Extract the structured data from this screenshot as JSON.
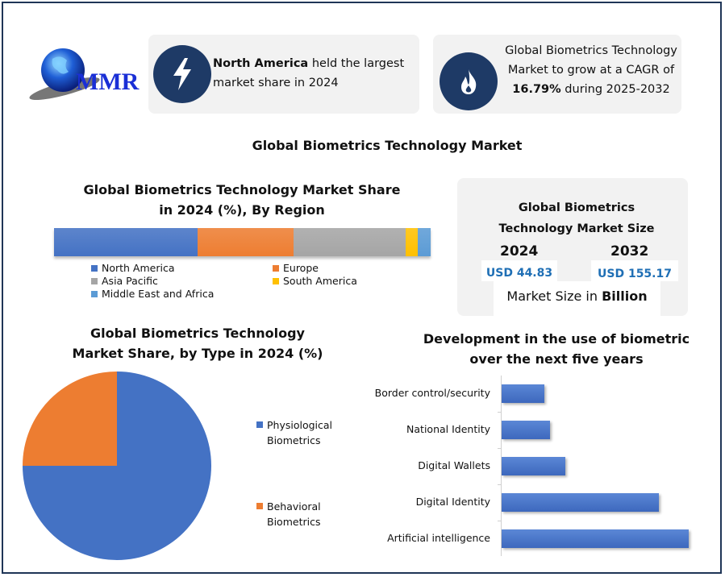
{
  "logo": {
    "text": "MMR"
  },
  "highlight1": {
    "bold": "North America",
    "text": " held the largest market share in 2024",
    "icon": "lightning-icon"
  },
  "highlight2": {
    "line1": "Global Biometrics Technology Market to grow at a CAGR of ",
    "bold": "16.79%",
    "line2": " during 2025-2032",
    "icon": "flame-icon"
  },
  "main_title": "Global Biometrics Technology Market",
  "market_size": {
    "title": "Global Biometrics Technology Market Size",
    "year1": "2024",
    "value1": "USD 44.83",
    "year2": "2032",
    "value2": "USD 155.17",
    "unit_prefix": "Market Size in ",
    "unit_bold": "Billion"
  },
  "colors": {
    "blue": "#4472c4",
    "orange": "#ed7d31",
    "gray": "#a5a5a5",
    "yellow": "#ffc000",
    "lightblue": "#5b9bd5",
    "navy": "#1e3a66"
  },
  "chart_data": [
    {
      "type": "bar",
      "stacked": true,
      "title": "Global Biometrics Technology Market Share in 2024 (%), By Region",
      "categories": [
        "North America",
        "Europe",
        "Asia Pacific",
        "South America",
        "Middle East and Africa"
      ],
      "values": [
        38.1,
        25.5,
        29.8,
        3.2,
        3.4
      ],
      "colors": [
        "#4472c4",
        "#ed7d31",
        "#a5a5a5",
        "#ffc000",
        "#5b9bd5"
      ],
      "legend": "bottom"
    },
    {
      "type": "pie",
      "title": "Global Biometrics Technology Market Share, by Type in 2024 (%)",
      "categories": [
        "Physiological Biometrics",
        "Behavioral Biometrics"
      ],
      "values": [
        75,
        25
      ],
      "colors": [
        "#4472c4",
        "#ed7d31"
      ],
      "legend": "right"
    },
    {
      "type": "bar",
      "orientation": "horizontal",
      "title": "Development in the use of biometric over the next five years",
      "categories": [
        "Border control/security",
        "National Identity",
        "Digital Wallets",
        "Digital Identity",
        "Artificial intelligence"
      ],
      "values": [
        23,
        26,
        34,
        84,
        100
      ],
      "color": "#4472c4"
    }
  ]
}
